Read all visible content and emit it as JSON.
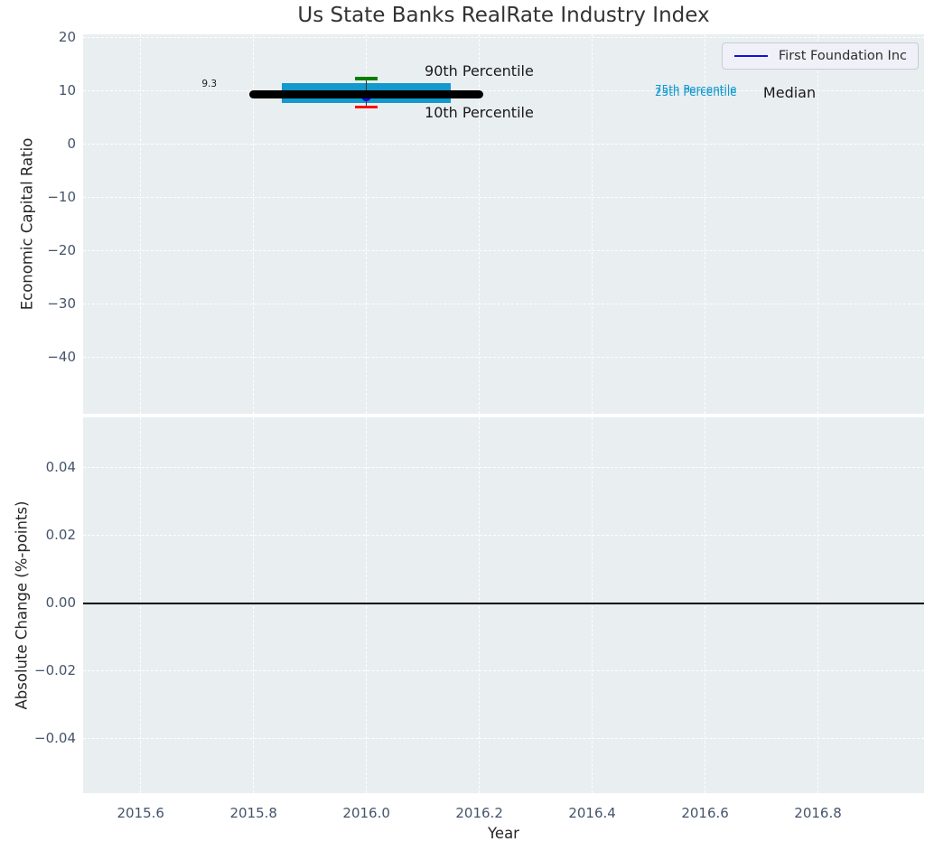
{
  "title": "Us State Banks RealRate Industry Index",
  "legend": {
    "label": "First Foundation Inc",
    "line_color": "#0f0fe6"
  },
  "colors": {
    "axes_background": "#e9eef1",
    "grid": "#ffffff",
    "tick_label": "#44546a",
    "axis_label": "#262626",
    "box_fill": "#1299ce",
    "median_line": "#000000",
    "p90_cap": "#008000",
    "p10_cap": "#fb0d0d",
    "company_marker": "#0f0fe6",
    "whisker": "#333333",
    "zero_line": "#000000"
  },
  "chart_data": [
    {
      "type": "boxplot",
      "title": "Us State Banks RealRate Industry Index",
      "ylabel": "Economic Capital Ratio",
      "ylim": [
        -50.66,
        20.51
      ],
      "yticks": [
        20,
        10,
        0,
        -10,
        -20,
        -30,
        -40
      ],
      "ytick_labels": [
        "20",
        "10",
        "0",
        "−10",
        "−20",
        "−30",
        "−40"
      ],
      "xlim": [
        2015.498,
        2016.988
      ],
      "xticks": [
        2015.6,
        2015.8,
        2016.0,
        2016.2,
        2016.4,
        2016.6,
        2016.8
      ],
      "grid": "dashed-white",
      "legend_position": "upper right",
      "box": {
        "x_center": 2016.0,
        "p90": 12.2,
        "p75": 11.3,
        "median": 9.3,
        "p25": 7.7,
        "p10": 6.9,
        "median_span": [
          2015.8,
          2016.2
        ],
        "box_span": [
          2015.85,
          2016.15
        ],
        "cap_span": [
          2015.98,
          2016.02
        ],
        "company_point": {
          "name": "First Foundation Inc",
          "x": 2016.0,
          "y": 9.0
        }
      },
      "annotations": [
        {
          "id": "median-value-label",
          "text": "9.3",
          "x": 2015.735,
          "y": 11.2,
          "ha": "right",
          "size": 10.5,
          "color": "#1a1a1a"
        },
        {
          "id": "p90-label",
          "text": "90th Percentile",
          "x": 2016.103,
          "y": 13.6,
          "ha": "left",
          "size": 16,
          "color": "#1a1a1a"
        },
        {
          "id": "p10-label",
          "text": "10th Percentile",
          "x": 2016.103,
          "y": 5.7,
          "ha": "left",
          "size": 16,
          "color": "#1a1a1a"
        },
        {
          "id": "p75-label",
          "text": "75th Percentile",
          "x": 2016.511,
          "y": 10.1,
          "ha": "left",
          "size": 12,
          "color": "#1299ce"
        },
        {
          "id": "p25-label",
          "text": "25th Percentile",
          "x": 2016.511,
          "y": 9.62,
          "ha": "left",
          "size": 12,
          "color": "#1299ce"
        },
        {
          "id": "median-label",
          "text": "Median",
          "x": 2016.703,
          "y": 9.5,
          "ha": "left",
          "size": 16,
          "color": "#1a1a1a"
        }
      ]
    },
    {
      "type": "line",
      "ylabel": "Absolute Change (%-points)",
      "xlabel": "Year",
      "ylim": [
        -0.056,
        0.0549
      ],
      "yticks": [
        0.04,
        0.02,
        0.0,
        -0.02,
        -0.04
      ],
      "ytick_labels": [
        "0.04",
        "0.02",
        "0.00",
        "−0.02",
        "−0.04"
      ],
      "xlim": [
        2015.498,
        2016.988
      ],
      "xticks": [
        2015.6,
        2015.8,
        2016.0,
        2016.2,
        2016.4,
        2016.6,
        2016.8
      ],
      "xtick_labels": [
        "2015.6",
        "2015.8",
        "2016.0",
        "2016.2",
        "2016.4",
        "2016.6",
        "2016.8"
      ],
      "grid": "dashed-white",
      "zero_line": 0.0,
      "series": []
    }
  ]
}
